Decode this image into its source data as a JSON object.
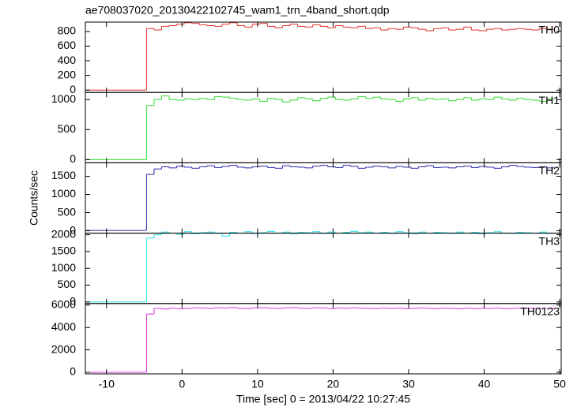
{
  "chart_data": {
    "type": "line",
    "title": "ae708037020_20130422102745_wam1_trn_4band_short.qdp",
    "xlabel": "Time [sec] 0 = 2013/04/22 10:27:45",
    "ylabel": "Counts/sec",
    "xlim": [
      -12.8,
      50.2
    ],
    "xticks": [
      -10,
      0,
      10,
      20,
      30,
      40,
      50
    ],
    "x": [
      -12.7,
      -11.7,
      -10.7,
      -9.7,
      -8.7,
      -7.7,
      -6.7,
      -5.7,
      -4.7,
      -3.7,
      -2.7,
      -1.7,
      -0.7,
      0.3,
      1.3,
      2.3,
      3.3,
      4.3,
      5.3,
      6.3,
      7.3,
      8.3,
      9.3,
      10.3,
      11.3,
      12.3,
      13.3,
      14.3,
      15.3,
      16.3,
      17.3,
      18.3,
      19.3,
      20.3,
      21.3,
      22.3,
      23.3,
      24.3,
      25.3,
      26.3,
      27.3,
      28.3,
      29.3,
      30.3,
      31.3,
      32.3,
      33.3,
      34.3,
      35.3,
      36.3,
      37.3,
      38.3,
      39.3,
      40.3,
      41.3,
      42.3,
      43.3,
      44.3,
      45.3,
      46.3,
      47.3,
      48.3
    ],
    "series": [
      {
        "name": "TH0",
        "color": "#e0302a",
        "ylim": [
          -32,
          928
        ],
        "yticks": [
          0,
          200,
          400,
          600,
          800
        ],
        "values": [
          0,
          0,
          0,
          0,
          0,
          0,
          0,
          0,
          840,
          820,
          870,
          880,
          900,
          920,
          910,
          890,
          880,
          870,
          900,
          920,
          880,
          860,
          900,
          910,
          870,
          850,
          880,
          900,
          870,
          860,
          890,
          870,
          850,
          880,
          860,
          850,
          870,
          840,
          850,
          820,
          840,
          830,
          860,
          850,
          830,
          810,
          840,
          850,
          820,
          830,
          860,
          820,
          810,
          830,
          840,
          820,
          830,
          840,
          830,
          820,
          840,
          830
        ]
      },
      {
        "name": "TH1",
        "color": "#2fdc2f",
        "ylim": [
          -53,
          1118
        ],
        "yticks": [
          0,
          500,
          1000
        ],
        "values": [
          0,
          0,
          0,
          0,
          0,
          0,
          0,
          0,
          900,
          1000,
          1060,
          1000,
          990,
          1010,
          1000,
          1020,
          1000,
          1050,
          1040,
          1020,
          1000,
          990,
          1010,
          970,
          1020,
          1000,
          960,
          990,
          1030,
          1010,
          980,
          1020,
          1040,
          1000,
          990,
          1010,
          1050,
          1020,
          1040,
          1010,
          1000,
          970,
          1010,
          1030,
          990,
          1020,
          1000,
          1010,
          980,
          1000,
          1030,
          990,
          1010,
          1000,
          1040,
          1010,
          990,
          1020,
          1000,
          990,
          970,
          1010
        ]
      },
      {
        "name": "TH2",
        "color": "#2828b0",
        "ylim": [
          -65,
          1870
        ],
        "yticks": [
          0,
          500,
          1000,
          1500
        ],
        "values": [
          10,
          10,
          10,
          10,
          10,
          10,
          10,
          10,
          1550,
          1700,
          1760,
          1730,
          1780,
          1750,
          1720,
          1760,
          1790,
          1740,
          1770,
          1800,
          1750,
          1730,
          1760,
          1780,
          1740,
          1720,
          1790,
          1760,
          1750,
          1730,
          1780,
          1800,
          1760,
          1740,
          1800,
          1770,
          1720,
          1750,
          1780,
          1760,
          1730,
          1770,
          1750,
          1720,
          1760,
          1790,
          1740,
          1750,
          1730,
          1760,
          1780,
          1740,
          1770,
          1750,
          1720,
          1760,
          1800,
          1770,
          1750,
          1740,
          1760,
          1730
        ]
      },
      {
        "name": "TH3",
        "color": "#22e2e8",
        "ylim": [
          -47,
          2047
        ],
        "yticks": [
          0,
          500,
          1000,
          1500,
          2000
        ],
        "values": [
          0,
          0,
          0,
          0,
          0,
          0,
          0,
          0,
          1900,
          2000,
          2080,
          2050,
          2010,
          2090,
          2030,
          2060,
          2080,
          2040,
          1960,
          2070,
          2050,
          2090,
          2040,
          2060,
          2100,
          2050,
          2080,
          2030,
          2070,
          2060,
          2090,
          2040,
          2080,
          2050,
          2070,
          2100,
          2060,
          2080,
          2050,
          2070,
          2040,
          2090,
          2060,
          2030,
          2080,
          2050,
          2070,
          2060,
          2040,
          2080,
          2050,
          2070,
          2030,
          2060,
          2090,
          2050,
          2040,
          2070,
          2060,
          2050,
          2080,
          2040
        ]
      },
      {
        "name": "TH0123",
        "color": "#dc2fdc",
        "ylim": [
          -140,
          6138
        ],
        "yticks": [
          0,
          2000,
          4000,
          6000
        ],
        "values": [
          0,
          0,
          0,
          0,
          0,
          0,
          0,
          0,
          5200,
          5700,
          5650,
          5720,
          5680,
          5700,
          5750,
          5730,
          5700,
          5760,
          5740,
          5780,
          5700,
          5690,
          5750,
          5760,
          5720,
          5700,
          5740,
          5780,
          5720,
          5700,
          5760,
          5740,
          5690,
          5730,
          5710,
          5760,
          5720,
          5700,
          5690,
          5730,
          5700,
          5720,
          5680,
          5710,
          5740,
          5700,
          5690,
          5720,
          5700,
          5680,
          5720,
          5690,
          5710,
          5700,
          5730,
          5690,
          5700,
          5720,
          5700,
          5690,
          5710,
          5700
        ]
      }
    ]
  }
}
